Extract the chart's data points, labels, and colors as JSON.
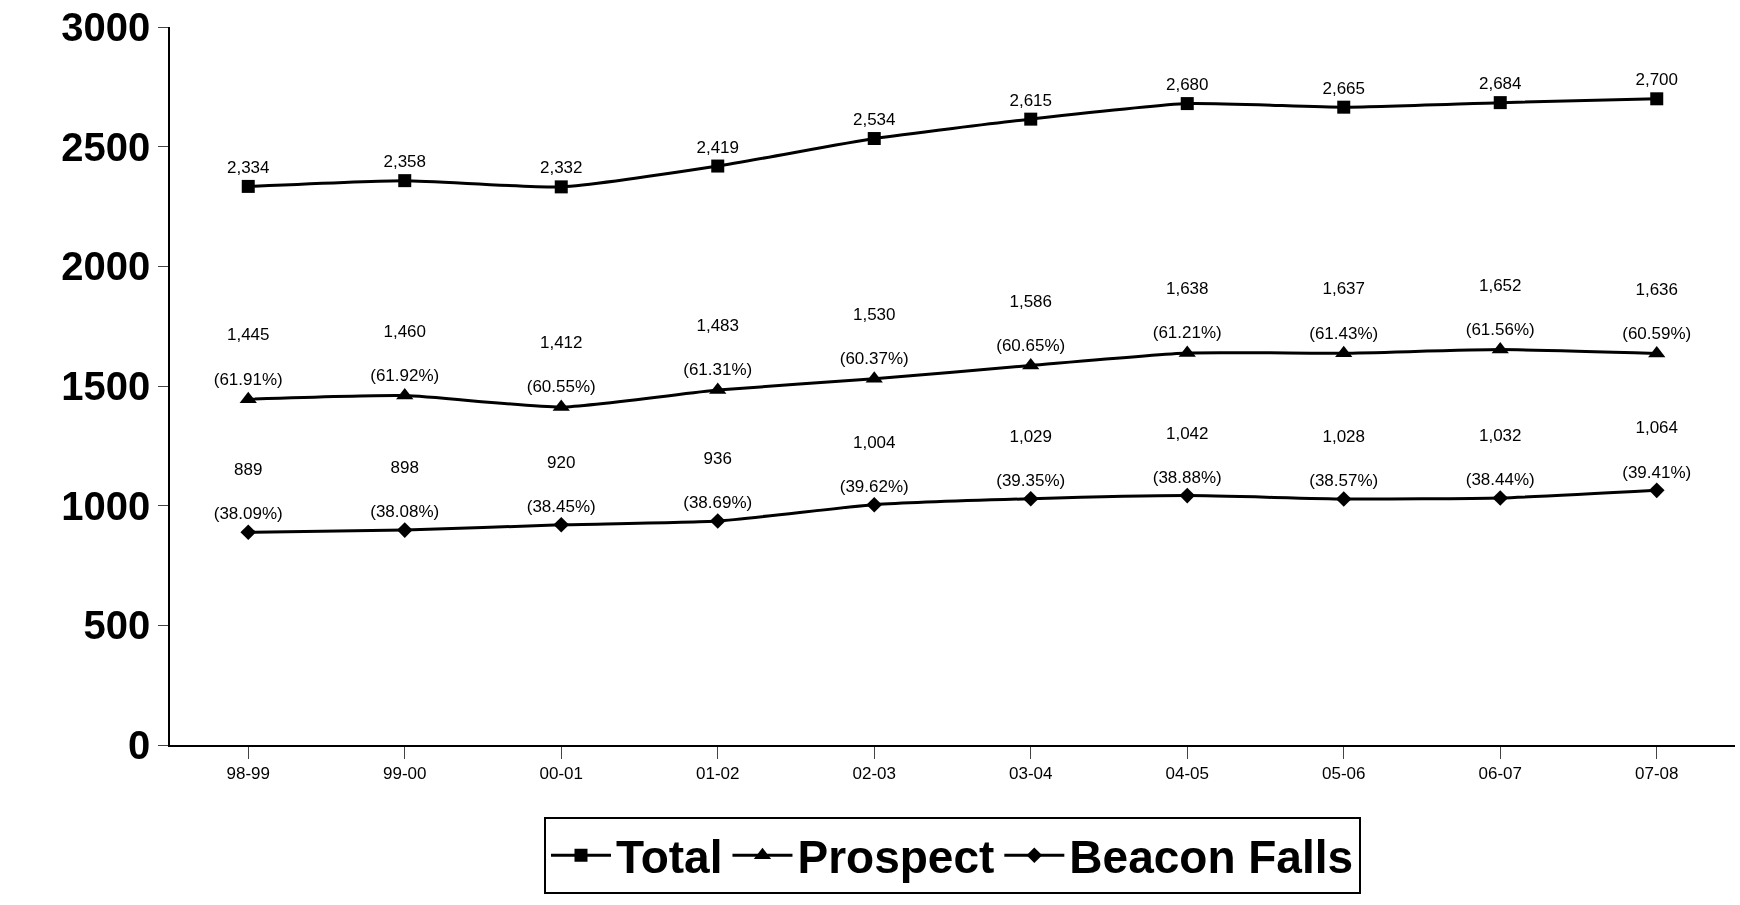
{
  "chart_data": {
    "type": "line",
    "categories": [
      "98-99",
      "99-00",
      "00-01",
      "01-02",
      "02-03",
      "03-04",
      "04-05",
      "05-06",
      "06-07",
      "07-08"
    ],
    "series": [
      {
        "name": "Total",
        "color": "#000000",
        "marker": "square",
        "values": [
          2334,
          2358,
          2332,
          2419,
          2534,
          2615,
          2680,
          2665,
          2684,
          2700
        ],
        "value_labels": [
          "2,334",
          "2,358",
          "2,332",
          "2,419",
          "2,534",
          "2,615",
          "2,680",
          "2,665",
          "2,684",
          "2,700"
        ]
      },
      {
        "name": "Prospect",
        "color": "#000000",
        "marker": "triangle",
        "values": [
          1445,
          1460,
          1412,
          1483,
          1530,
          1586,
          1638,
          1637,
          1652,
          1636
        ],
        "value_labels": [
          "1,445\n(61.91%)",
          "1,460\n(61.92%)",
          "1,412\n(60.55%)",
          "1,483\n(61.31%)",
          "1,530\n(60.37%)",
          "1,586\n(60.65%)",
          "1,638\n(61.21%)",
          "1,637\n(61.43%)",
          "1,652\n(61.56%)",
          "1,636\n(60.59%)"
        ]
      },
      {
        "name": "Beacon Falls",
        "color": "#000000",
        "marker": "diamond",
        "values": [
          889,
          898,
          920,
          936,
          1004,
          1029,
          1042,
          1028,
          1032,
          1064
        ],
        "value_labels": [
          "889\n(38.09%)",
          "898\n(38.08%)",
          "920\n(38.45%)",
          "936\n(38.69%)",
          "1,004\n(39.62%)",
          "1,029\n(39.35%)",
          "1,042\n(38.88%)",
          "1,028\n(38.57%)",
          "1,032\n(38.44%)",
          "1,064\n(39.41%)"
        ]
      }
    ],
    "ylim": [
      0,
      3000
    ],
    "yticks": [
      0,
      500,
      1000,
      1500,
      2000,
      2500,
      3000
    ],
    "legend": "bottom",
    "line_style": "solid"
  }
}
